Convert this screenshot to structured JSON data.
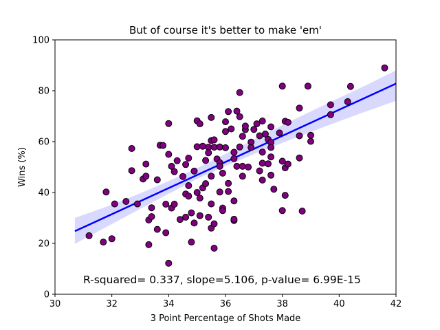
{
  "chart_data": {
    "type": "scatter",
    "title": "But of course it's better to make 'em'",
    "xlabel": "3 Point Percentage of Shots Made",
    "ylabel": "Wins (%)",
    "xlim": [
      30,
      42
    ],
    "ylim": [
      0,
      100
    ],
    "xticks": [
      30,
      32,
      34,
      36,
      38,
      40,
      42
    ],
    "yticks": [
      0,
      20,
      40,
      60,
      80,
      100
    ],
    "grid": false,
    "marker_color": "#800080",
    "marker_edge_color": "#000000",
    "line_color": "#0000ff",
    "band_color": "#0000ff",
    "annotation": "R-squared= 0.337, slope=5.106, p-value= 6.99E-15",
    "regression": {
      "x": [
        30.7,
        42.0
      ],
      "y": [
        24.8,
        82.8
      ]
    },
    "confidence_band": {
      "x": [
        30.7,
        32.0,
        33.0,
        34.0,
        35.0,
        36.0,
        37.0,
        38.0,
        39.0,
        40.0,
        41.0,
        42.0
      ],
      "upper": [
        30.0,
        35.2,
        39.7,
        44.5,
        49.6,
        55.2,
        60.8,
        66.4,
        71.9,
        77.2,
        82.5,
        88.0
      ],
      "lower": [
        19.8,
        27.6,
        33.6,
        39.5,
        45.3,
        50.4,
        55.1,
        59.5,
        63.8,
        68.0,
        72.1,
        76.0
      ]
    },
    "points": [
      [
        31.2,
        23.0
      ],
      [
        31.7,
        20.5
      ],
      [
        31.8,
        40.2
      ],
      [
        32.0,
        21.8
      ],
      [
        32.1,
        35.5
      ],
      [
        32.5,
        36.5
      ],
      [
        32.7,
        57.3
      ],
      [
        32.7,
        48.6
      ],
      [
        32.9,
        35.5
      ],
      [
        33.1,
        45.3
      ],
      [
        33.2,
        51.2
      ],
      [
        33.2,
        46.4
      ],
      [
        33.3,
        29.2
      ],
      [
        33.3,
        19.5
      ],
      [
        33.4,
        30.5
      ],
      [
        33.4,
        34.0
      ],
      [
        33.6,
        25.5
      ],
      [
        33.6,
        45.0
      ],
      [
        33.7,
        58.6
      ],
      [
        33.8,
        58.5
      ],
      [
        33.9,
        24.2
      ],
      [
        33.9,
        35.4
      ],
      [
        34.0,
        12.2
      ],
      [
        34.0,
        67.1
      ],
      [
        34.0,
        55.0
      ],
      [
        34.1,
        50.3
      ],
      [
        34.1,
        33.9
      ],
      [
        34.2,
        48.2
      ],
      [
        34.2,
        35.4
      ],
      [
        34.3,
        52.5
      ],
      [
        34.4,
        29.4
      ],
      [
        34.5,
        46.3
      ],
      [
        34.6,
        39.4
      ],
      [
        34.6,
        51.0
      ],
      [
        34.6,
        30.3
      ],
      [
        34.7,
        42.7
      ],
      [
        34.7,
        38.6
      ],
      [
        34.7,
        53.5
      ],
      [
        34.8,
        32.0
      ],
      [
        34.8,
        20.5
      ],
      [
        34.9,
        48.4
      ],
      [
        34.9,
        28.0
      ],
      [
        35.0,
        58.0
      ],
      [
        35.0,
        68.2
      ],
      [
        35.0,
        40.0
      ],
      [
        35.1,
        67.0
      ],
      [
        35.1,
        37.8
      ],
      [
        35.1,
        30.9
      ],
      [
        35.2,
        41.8
      ],
      [
        35.2,
        58.2
      ],
      [
        35.3,
        52.6
      ],
      [
        35.3,
        43.5
      ],
      [
        35.4,
        57.8
      ],
      [
        35.4,
        30.3
      ],
      [
        35.4,
        55.6
      ],
      [
        35.5,
        46.4
      ],
      [
        35.5,
        60.4
      ],
      [
        35.5,
        26.0
      ],
      [
        35.5,
        69.5
      ],
      [
        35.5,
        35.5
      ],
      [
        35.6,
        60.7
      ],
      [
        35.6,
        27.7
      ],
      [
        35.6,
        18.1
      ],
      [
        35.6,
        57.8
      ],
      [
        35.7,
        53.2
      ],
      [
        35.8,
        51.7
      ],
      [
        35.8,
        40.2
      ],
      [
        35.8,
        57.9
      ],
      [
        35.8,
        50.3
      ],
      [
        35.9,
        33.9
      ],
      [
        35.9,
        47.6
      ],
      [
        35.9,
        32.9
      ],
      [
        36.0,
        67.8
      ],
      [
        36.0,
        64.0
      ],
      [
        36.0,
        57.6
      ],
      [
        36.1,
        40.4
      ],
      [
        36.1,
        71.8
      ],
      [
        36.1,
        43.6
      ],
      [
        36.2,
        65.0
      ],
      [
        36.3,
        36.7
      ],
      [
        36.3,
        29.0
      ],
      [
        36.3,
        53.3
      ],
      [
        36.3,
        29.5
      ],
      [
        36.3,
        55.8
      ],
      [
        36.4,
        72.0
      ],
      [
        36.4,
        50.3
      ],
      [
        36.5,
        79.3
      ],
      [
        36.5,
        69.8
      ],
      [
        36.5,
        57.9
      ],
      [
        36.6,
        62.1
      ],
      [
        36.6,
        46.4
      ],
      [
        36.6,
        50.3
      ],
      [
        36.7,
        64.7
      ],
      [
        36.7,
        66.1
      ],
      [
        36.8,
        50.0
      ],
      [
        36.9,
        59.8
      ],
      [
        36.9,
        57.7
      ],
      [
        37.0,
        64.8
      ],
      [
        37.1,
        67.0
      ],
      [
        37.2,
        62.3
      ],
      [
        37.2,
        48.5
      ],
      [
        37.3,
        51.5
      ],
      [
        37.3,
        55.9
      ],
      [
        37.3,
        44.9
      ],
      [
        37.3,
        68.1
      ],
      [
        37.4,
        63.0
      ],
      [
        37.5,
        51.3
      ],
      [
        37.5,
        60.9
      ],
      [
        37.6,
        65.8
      ],
      [
        37.6,
        54.0
      ],
      [
        37.6,
        59.7
      ],
      [
        37.6,
        57.7
      ],
      [
        37.6,
        46.8
      ],
      [
        37.7,
        41.3
      ],
      [
        37.9,
        63.4
      ],
      [
        38.0,
        81.8
      ],
      [
        38.0,
        32.9
      ],
      [
        38.0,
        52.3
      ],
      [
        38.1,
        38.9
      ],
      [
        38.1,
        68.0
      ],
      [
        38.1,
        49.7
      ],
      [
        38.2,
        67.6
      ],
      [
        38.2,
        51.2
      ],
      [
        38.6,
        73.2
      ],
      [
        38.6,
        62.3
      ],
      [
        38.6,
        53.6
      ],
      [
        38.7,
        32.7
      ],
      [
        38.9,
        81.8
      ],
      [
        39.0,
        62.5
      ],
      [
        39.0,
        60.1
      ],
      [
        39.7,
        74.5
      ],
      [
        39.7,
        70.6
      ],
      [
        40.3,
        75.7
      ],
      [
        40.4,
        81.7
      ],
      [
        41.6,
        89.0
      ]
    ]
  }
}
